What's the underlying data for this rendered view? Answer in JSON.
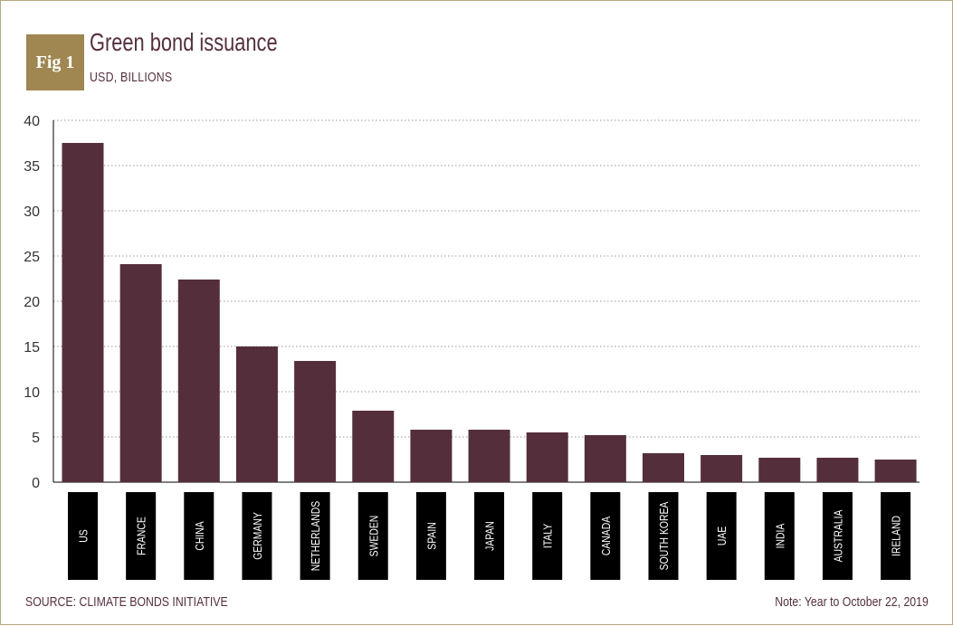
{
  "figure": {
    "badge": "Fig 1",
    "title": "Green bond issuance",
    "subtitle": "USD, BILLIONS",
    "source": "SOURCE: CLIMATE BONDS INITIATIVE",
    "note": "Note: Year to October 22, 2019"
  },
  "colors": {
    "bar": "#552e3c",
    "title": "#572f3e",
    "badge": "#a08650",
    "grid": "#9a9a9a",
    "label_box": "#000000"
  },
  "chart_data": {
    "type": "bar",
    "title": "Green bond issuance",
    "ylabel": "USD, BILLIONS",
    "xlabel": "",
    "ylim": [
      0,
      40
    ],
    "yticks": [
      0,
      5,
      10,
      15,
      20,
      25,
      30,
      35,
      40
    ],
    "grid": "horizontal dotted",
    "categories": [
      "US",
      "FRANCE",
      "CHINA",
      "GERMANY",
      "NETHERLANDS",
      "SWEDEN",
      "SPAIN",
      "JAPAN",
      "ITALY",
      "CANADA",
      "SOUTH KOREA",
      "UAE",
      "INDIA",
      "AUSTRALIA",
      "IRELAND"
    ],
    "values": [
      37.5,
      24.1,
      22.4,
      15.0,
      13.4,
      7.9,
      5.8,
      5.8,
      5.5,
      5.2,
      3.2,
      3.0,
      2.7,
      2.7,
      2.5
    ]
  }
}
